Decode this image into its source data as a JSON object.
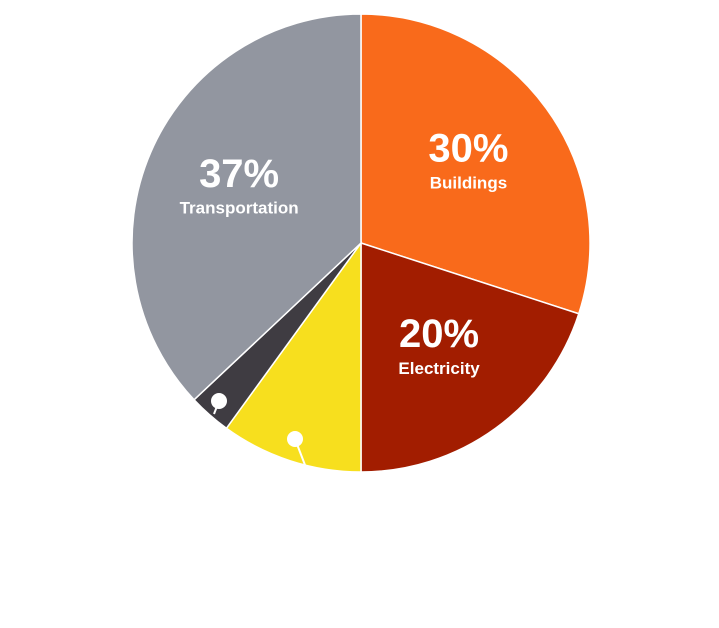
{
  "chart_data": {
    "type": "pie",
    "categories": [
      "Buildings",
      "Electricity",
      null,
      null,
      "Transportation"
    ],
    "values": [
      30,
      20,
      10,
      3,
      37
    ],
    "value_labels": [
      "30%",
      "20%",
      null,
      null,
      "37%"
    ],
    "colors": [
      "#f96a1b",
      "#a21d00",
      "#f7df1e",
      "#3f3c42",
      "#9296a0"
    ]
  }
}
